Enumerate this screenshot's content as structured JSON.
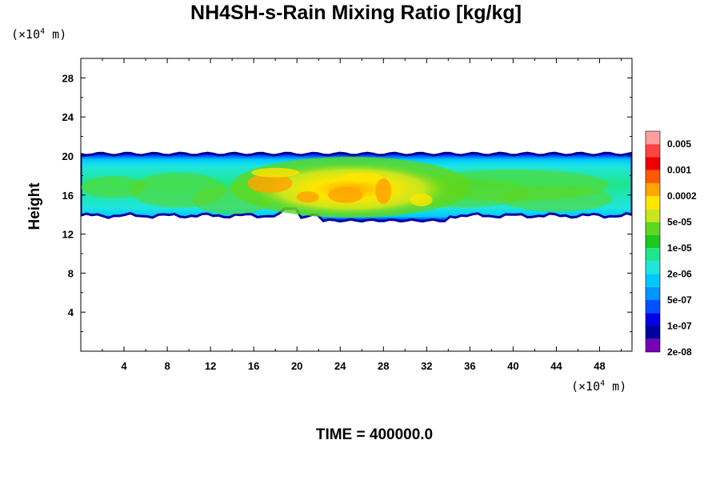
{
  "chart_data": {
    "type": "heatmap",
    "title": "NH4SH-s-Rain Mixing Ratio [kg/kg]",
    "ylabel": "Height",
    "xunit": {
      "prefix": "(×10",
      "exp": "4",
      "suffix": " m)"
    },
    "yunit": {
      "prefix": "(×10",
      "exp": "4",
      "suffix": " m)"
    },
    "xlim": [
      0,
      51
    ],
    "ylim": [
      0,
      30
    ],
    "xticks": [
      "4",
      "8",
      "12",
      "16",
      "20",
      "24",
      "28",
      "32",
      "36",
      "40",
      "44",
      "48"
    ],
    "yticks": [
      "4",
      "8",
      "12",
      "16",
      "20",
      "24",
      "28"
    ],
    "colorbar": {
      "labels": [
        "0.005",
        "0.001",
        "0.0002",
        "5e-05",
        "1e-05",
        "2e-06",
        "5e-07",
        "1e-07",
        "2e-08"
      ],
      "colors": [
        "#ff9fa0",
        "#ff4444",
        "#ee0000",
        "#ff5a00",
        "#ffa500",
        "#ffe600",
        "#c8e61e",
        "#5fd71e",
        "#1ec81e",
        "#1ee68c",
        "#1ee6dc",
        "#00c8ff",
        "#0096ff",
        "#0050ff",
        "#0000e6",
        "#0000a0",
        "#7800b4"
      ]
    },
    "layer": {
      "bottom_km": [
        13.8,
        13.4,
        13.2
      ],
      "top_km": 20.2
    },
    "footer": "TIME = 400000.0"
  }
}
